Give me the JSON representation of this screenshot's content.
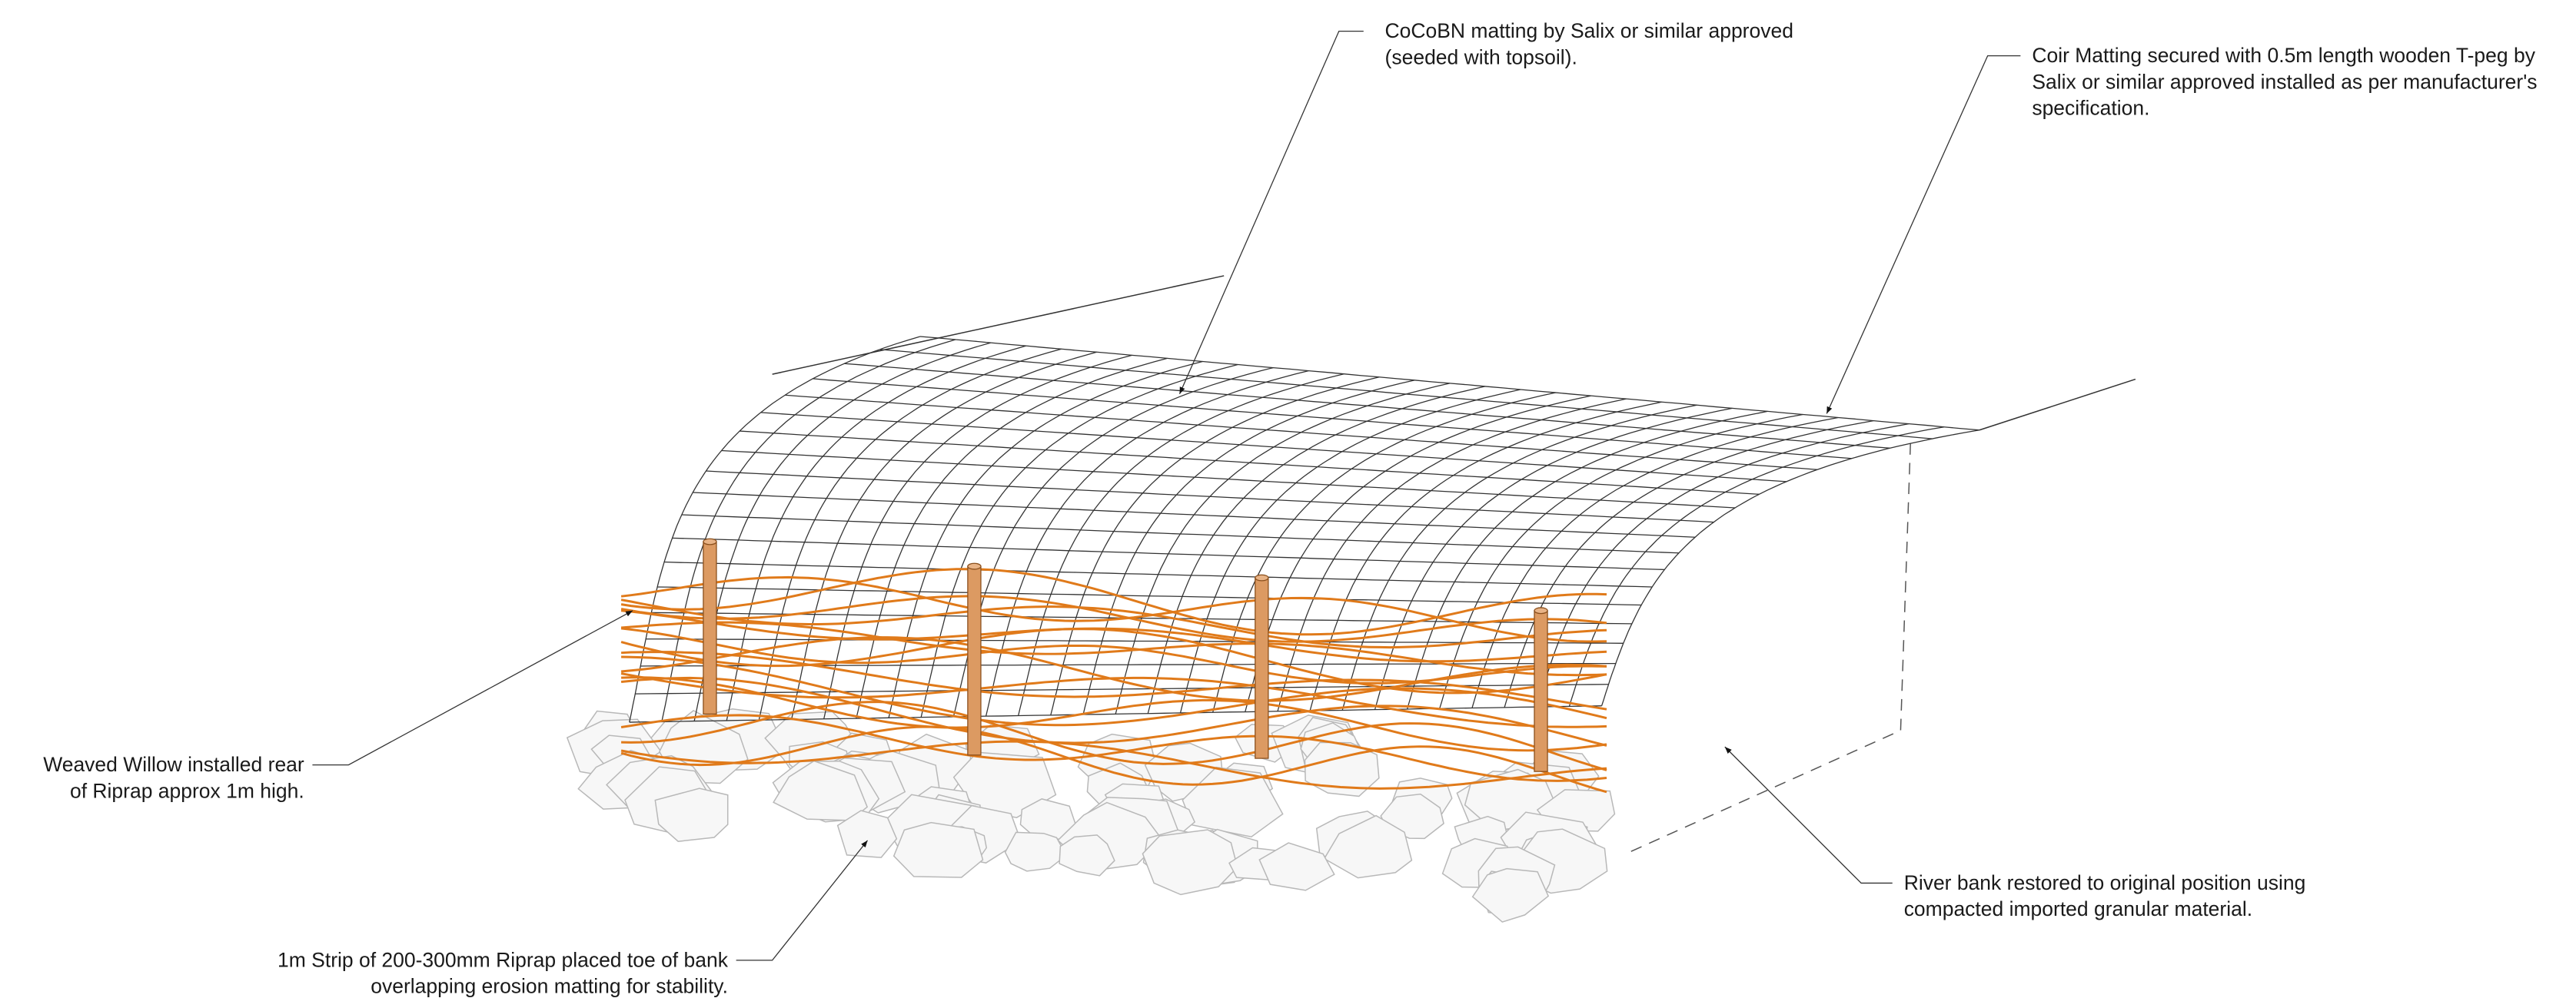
{
  "labels": [
    {
      "lines": [
        "CoCoBN matting by Salix or similar approved",
        "(seeded with topsoil)."
      ]
    },
    {
      "lines": [
        "Coir Matting secured with 0.5m length wooden T-peg by",
        "Salix or similar approved installed as per manufacturer's",
        "specification."
      ]
    },
    {
      "lines": [
        "Weaved Willow installed rear",
        "of Riprap approx 1m high."
      ]
    },
    {
      "lines": [
        "1m Strip of 200-300mm Riprap placed toe of bank",
        "overlapping erosion matting for stability."
      ]
    },
    {
      "lines": [
        "River bank restored to original position using",
        "compacted imported granular material."
      ]
    }
  ]
}
